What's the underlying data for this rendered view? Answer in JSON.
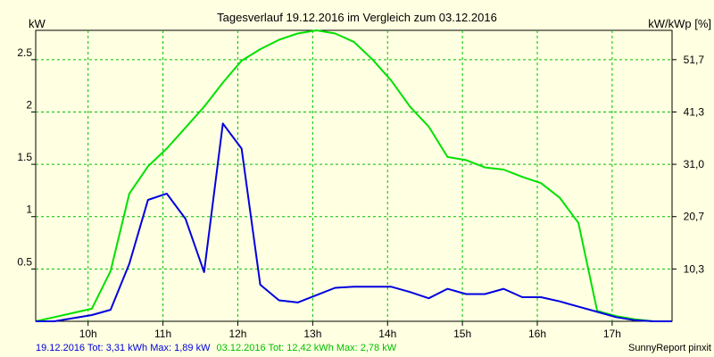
{
  "chart_data": {
    "type": "line",
    "title": "Tagesverlauf 19.12.2016 im Vergleich zum 03.12.2016",
    "ylabel_left": "kW",
    "ylabel_right": "kW/kWp [%]",
    "xlim": [
      9.3,
      17.8
    ],
    "ylim": [
      0,
      2.78
    ],
    "grid": true,
    "x_ticks": [
      {
        "value": 10,
        "label": "10h"
      },
      {
        "value": 11,
        "label": "11h"
      },
      {
        "value": 12,
        "label": "12h"
      },
      {
        "value": 13,
        "label": "13h"
      },
      {
        "value": 14,
        "label": "14h"
      },
      {
        "value": 15,
        "label": "15h"
      },
      {
        "value": 16,
        "label": "16h"
      },
      {
        "value": 17,
        "label": "17h"
      }
    ],
    "y_ticks_left": [
      {
        "value": 0.5,
        "label": "0.5"
      },
      {
        "value": 1,
        "label": "1"
      },
      {
        "value": 1.5,
        "label": "1.5"
      },
      {
        "value": 2,
        "label": "2"
      },
      {
        "value": 2.5,
        "label": "2.5"
      }
    ],
    "y_ticks_right": [
      {
        "value": 0.5,
        "label": "10,3"
      },
      {
        "value": 1,
        "label": "20,7"
      },
      {
        "value": 1.5,
        "label": "31,0"
      },
      {
        "value": 2,
        "label": "41,3"
      },
      {
        "value": 2.5,
        "label": "51,7"
      }
    ],
    "series": [
      {
        "color": "#00e000",
        "points": [
          [
            9.3,
            0.0
          ],
          [
            9.55,
            0.04
          ],
          [
            9.8,
            0.08
          ],
          [
            10.05,
            0.12
          ],
          [
            10.3,
            0.48
          ],
          [
            10.55,
            1.22
          ],
          [
            10.8,
            1.48
          ],
          [
            11.05,
            1.65
          ],
          [
            11.3,
            1.85
          ],
          [
            11.55,
            2.05
          ],
          [
            11.8,
            2.28
          ],
          [
            12.05,
            2.49
          ],
          [
            12.3,
            2.6
          ],
          [
            12.55,
            2.69
          ],
          [
            12.8,
            2.75
          ],
          [
            13.05,
            2.78
          ],
          [
            13.3,
            2.75
          ],
          [
            13.55,
            2.67
          ],
          [
            13.8,
            2.5
          ],
          [
            14.05,
            2.3
          ],
          [
            14.3,
            2.05
          ],
          [
            14.55,
            1.86
          ],
          [
            14.8,
            1.57
          ],
          [
            15.05,
            1.54
          ],
          [
            15.3,
            1.47
          ],
          [
            15.55,
            1.45
          ],
          [
            15.8,
            1.38
          ],
          [
            16.05,
            1.32
          ],
          [
            16.3,
            1.18
          ],
          [
            16.55,
            0.94
          ],
          [
            16.8,
            0.1
          ],
          [
            17.05,
            0.05
          ],
          [
            17.3,
            0.02
          ],
          [
            17.55,
            0.0
          ],
          [
            17.8,
            0.0
          ]
        ]
      },
      {
        "color": "#0000e0",
        "points": [
          [
            9.3,
            0.0
          ],
          [
            9.55,
            0.0
          ],
          [
            9.8,
            0.03
          ],
          [
            10.05,
            0.06
          ],
          [
            10.3,
            0.11
          ],
          [
            10.55,
            0.55
          ],
          [
            10.8,
            1.16
          ],
          [
            11.05,
            1.22
          ],
          [
            11.3,
            0.98
          ],
          [
            11.55,
            0.47
          ],
          [
            11.8,
            1.89
          ],
          [
            12.05,
            1.65
          ],
          [
            12.3,
            0.35
          ],
          [
            12.55,
            0.2
          ],
          [
            12.8,
            0.18
          ],
          [
            13.05,
            0.25
          ],
          [
            13.3,
            0.32
          ],
          [
            13.55,
            0.33
          ],
          [
            13.8,
            0.33
          ],
          [
            14.05,
            0.33
          ],
          [
            14.3,
            0.28
          ],
          [
            14.55,
            0.22
          ],
          [
            14.8,
            0.31
          ],
          [
            15.05,
            0.26
          ],
          [
            15.3,
            0.26
          ],
          [
            15.55,
            0.31
          ],
          [
            15.8,
            0.23
          ],
          [
            16.05,
            0.23
          ],
          [
            16.3,
            0.19
          ],
          [
            16.55,
            0.14
          ],
          [
            16.8,
            0.09
          ],
          [
            17.05,
            0.04
          ],
          [
            17.3,
            0.01
          ],
          [
            17.55,
            0.0
          ],
          [
            17.8,
            0.0
          ]
        ]
      }
    ]
  },
  "footer": {
    "legend_blue": "19.12.2016 Tot: 3,31 kWh Max: 1,89 kW",
    "legend_green": "03.12.2016 Tot: 12,42 kWh Max: 2,78 kW",
    "credit": "SunnyReport pinxit"
  },
  "colors": {
    "background": "#ffffe1",
    "grid": "#00c000",
    "axis": "#000000",
    "legend_blue": "#0000e0",
    "legend_green": "#00c000"
  }
}
